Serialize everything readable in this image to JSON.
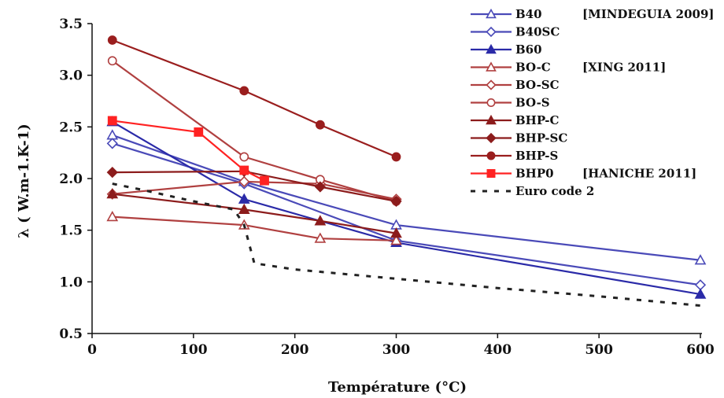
{
  "chart_data": {
    "type": "line",
    "xlabel": "Température (°C)",
    "ylabel": "λ ( W.m-1.K-1)",
    "xlim": [
      0,
      600
    ],
    "ylim": [
      0.5,
      3.5
    ],
    "xticks": [
      0,
      100,
      200,
      300,
      400,
      500,
      600
    ],
    "yticks": [
      0.5,
      1.0,
      1.5,
      2.0,
      2.5,
      3.0,
      3.5
    ],
    "xtick_labels": [
      "0",
      "100",
      "200",
      "300",
      "400",
      "500",
      "600"
    ],
    "ytick_labels": [
      "0.5",
      "1.0",
      "1.5",
      "2.0",
      "2.5",
      "3.0",
      "3.5"
    ],
    "grid": false,
    "legend_position": "top-right",
    "series": [
      {
        "name": "B40",
        "note": "[MINDEGUIA 2009]",
        "color": "#4a4ab8",
        "marker": "triangle-open",
        "dashed": false,
        "x": [
          20,
          150,
          300,
          600
        ],
        "y": [
          2.42,
          1.97,
          1.55,
          1.21
        ]
      },
      {
        "name": "B40SC",
        "color": "#4a4ab8",
        "marker": "diamond-open",
        "dashed": false,
        "x": [
          20,
          150,
          300,
          600
        ],
        "y": [
          2.34,
          1.95,
          1.4,
          0.97
        ]
      },
      {
        "name": "B60",
        "color": "#2a2aa8",
        "marker": "triangle-filled",
        "dashed": false,
        "x": [
          20,
          150,
          300,
          600
        ],
        "y": [
          2.55,
          1.8,
          1.38,
          0.88
        ]
      },
      {
        "name": "BO-C",
        "note": "[XING 2011]",
        "color": "#b04040",
        "marker": "triangle-open",
        "dashed": false,
        "x": [
          20,
          150,
          225,
          300
        ],
        "y": [
          1.63,
          1.55,
          1.42,
          1.4
        ]
      },
      {
        "name": "BO-SC",
        "color": "#b04040",
        "marker": "diamond-open",
        "dashed": false,
        "x": [
          20,
          150,
          225,
          300
        ],
        "y": [
          1.85,
          1.97,
          1.95,
          1.8
        ]
      },
      {
        "name": "BO-S",
        "color": "#b04040",
        "marker": "circle-open",
        "dashed": false,
        "x": [
          20,
          150,
          225,
          300
        ],
        "y": [
          3.14,
          2.21,
          1.99,
          1.78
        ]
      },
      {
        "name": "BHP-C",
        "color": "#8c1c1c",
        "marker": "triangle-filled",
        "dashed": false,
        "x": [
          20,
          150,
          225,
          300
        ],
        "y": [
          1.85,
          1.7,
          1.59,
          1.47
        ]
      },
      {
        "name": "BHP-SC",
        "color": "#8c1c1c",
        "marker": "diamond-filled",
        "dashed": false,
        "x": [
          20,
          150,
          225,
          300
        ],
        "y": [
          2.06,
          2.07,
          1.92,
          1.78
        ]
      },
      {
        "name": "BHP-S",
        "color": "#9a1e1e",
        "marker": "circle-filled",
        "dashed": false,
        "x": [
          20,
          150,
          225,
          300
        ],
        "y": [
          3.34,
          2.85,
          2.52,
          2.21
        ]
      },
      {
        "name": "BHP0",
        "note": "[HANICHE 2011]",
        "color": "#ff2222",
        "marker": "square-filled",
        "dashed": false,
        "x": [
          20,
          105,
          150,
          170
        ],
        "y": [
          2.56,
          2.45,
          2.08,
          1.98
        ]
      },
      {
        "name": "Euro code 2",
        "color": "#222222",
        "marker": "none",
        "dashed": true,
        "x": [
          20,
          50,
          100,
          140,
          150,
          160,
          200,
          300,
          400,
          500,
          600
        ],
        "y": [
          1.95,
          1.89,
          1.78,
          1.7,
          1.55,
          1.18,
          1.12,
          1.03,
          0.94,
          0.86,
          0.77
        ]
      }
    ]
  }
}
